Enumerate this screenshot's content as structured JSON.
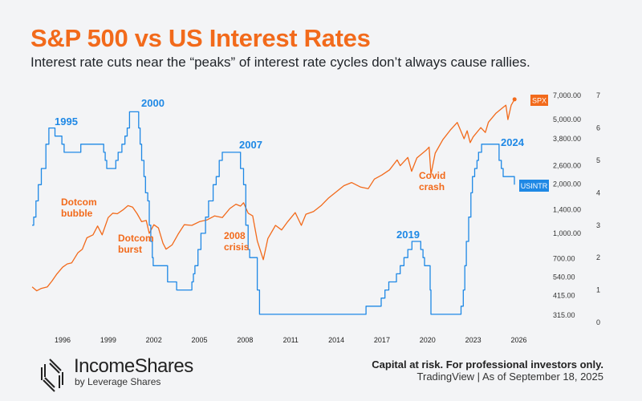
{
  "header": {
    "title": "S&P 500 vs US Interest Rates",
    "subtitle": "Interest rate cuts near the “peaks” of interest rate cycles don’t always cause rallies."
  },
  "footer": {
    "brand": "IncomeShares",
    "brand_sub": "by Leverage Shares",
    "disclaimer": "Capital at risk. For professional investors only.",
    "source": "TradingView | As of September 18, 2025"
  },
  "colors": {
    "spx": "#f26a1b",
    "rate": "#1e88e5",
    "title": "#f26a1b"
  },
  "chart_data": {
    "type": "line",
    "x_ticks": [
      "1996",
      "1999",
      "2002",
      "2005",
      "2008",
      "2011",
      "2014",
      "2017",
      "2020",
      "2023",
      "2026"
    ],
    "y_left_label_ticks_spx": [
      "7,000.00",
      "5,000.00",
      "3,800.00",
      "2,600.00",
      "2,000.00",
      "1,400.00",
      "1,000.00",
      "700.00",
      "540.00",
      "415.00",
      "315.00"
    ],
    "y_right_ticks_rate": [
      "7",
      "6",
      "5",
      "4",
      "3",
      "2",
      "1",
      "0"
    ],
    "spx_scale": "log",
    "xlim": [
      1994,
      2026.5
    ],
    "series": [
      {
        "name": "SPX",
        "axis": "spx",
        "points": [
          [
            1994,
            470
          ],
          [
            1994.3,
            445
          ],
          [
            1994.6,
            460
          ],
          [
            1995,
            470
          ],
          [
            1995.3,
            510
          ],
          [
            1995.6,
            560
          ],
          [
            1996,
            620
          ],
          [
            1996.3,
            650
          ],
          [
            1996.6,
            660
          ],
          [
            1997,
            760
          ],
          [
            1997.3,
            800
          ],
          [
            1997.6,
            940
          ],
          [
            1998,
            980
          ],
          [
            1998.3,
            1110
          ],
          [
            1998.6,
            980
          ],
          [
            1999,
            1250
          ],
          [
            1999.3,
            1330
          ],
          [
            1999.6,
            1320
          ],
          [
            2000,
            1400
          ],
          [
            2000.3,
            1480
          ],
          [
            2000.6,
            1450
          ],
          [
            2000.9,
            1320
          ],
          [
            2001.2,
            1180
          ],
          [
            2001.5,
            1200
          ],
          [
            2001.7,
            1000
          ],
          [
            2002,
            1130
          ],
          [
            2002.3,
            1080
          ],
          [
            2002.6,
            870
          ],
          [
            2002.8,
            800
          ],
          [
            2003.2,
            850
          ],
          [
            2003.6,
            990
          ],
          [
            2004,
            1130
          ],
          [
            2004.5,
            1120
          ],
          [
            2005,
            1180
          ],
          [
            2005.5,
            1210
          ],
          [
            2006,
            1280
          ],
          [
            2006.5,
            1250
          ],
          [
            2007,
            1420
          ],
          [
            2007.4,
            1510
          ],
          [
            2007.7,
            1470
          ],
          [
            2007.9,
            1540
          ],
          [
            2008.2,
            1330
          ],
          [
            2008.5,
            1280
          ],
          [
            2008.8,
            900
          ],
          [
            2009.2,
            690
          ],
          [
            2009.5,
            930
          ],
          [
            2010,
            1120
          ],
          [
            2010.4,
            1050
          ],
          [
            2010.8,
            1180
          ],
          [
            2011.3,
            1340
          ],
          [
            2011.7,
            1120
          ],
          [
            2012,
            1310
          ],
          [
            2012.5,
            1360
          ],
          [
            2013,
            1480
          ],
          [
            2013.5,
            1650
          ],
          [
            2014,
            1800
          ],
          [
            2014.5,
            1960
          ],
          [
            2015,
            2050
          ],
          [
            2015.6,
            1920
          ],
          [
            2016.1,
            1880
          ],
          [
            2016.5,
            2150
          ],
          [
            2017,
            2280
          ],
          [
            2017.5,
            2450
          ],
          [
            2018,
            2820
          ],
          [
            2018.2,
            2600
          ],
          [
            2018.7,
            2920
          ],
          [
            2018.95,
            2400
          ],
          [
            2019.3,
            2900
          ],
          [
            2019.9,
            3230
          ],
          [
            2020.1,
            3380
          ],
          [
            2020.22,
            2300
          ],
          [
            2020.5,
            3100
          ],
          [
            2021,
            3750
          ],
          [
            2021.5,
            4300
          ],
          [
            2021.95,
            4780
          ],
          [
            2022.4,
            3800
          ],
          [
            2022.6,
            4250
          ],
          [
            2022.8,
            3600
          ],
          [
            2023,
            3900
          ],
          [
            2023.5,
            4450
          ],
          [
            2023.8,
            4150
          ],
          [
            2024,
            4800
          ],
          [
            2024.5,
            5450
          ],
          [
            2024.95,
            5900
          ],
          [
            2025.15,
            6100
          ],
          [
            2025.28,
            4980
          ],
          [
            2025.5,
            6100
          ],
          [
            2025.72,
            6630
          ]
        ]
      },
      {
        "name": "USINTR",
        "axis": "rate",
        "step": true,
        "points": [
          [
            1994,
            3.0
          ],
          [
            1994.1,
            3.25
          ],
          [
            1994.25,
            3.75
          ],
          [
            1994.4,
            4.25
          ],
          [
            1994.6,
            4.75
          ],
          [
            1994.9,
            5.5
          ],
          [
            1995.1,
            6.0
          ],
          [
            1995.5,
            5.75
          ],
          [
            1995.95,
            5.5
          ],
          [
            1996.1,
            5.25
          ],
          [
            1997.2,
            5.5
          ],
          [
            1998.7,
            5.25
          ],
          [
            1998.8,
            5.0
          ],
          [
            1998.9,
            4.75
          ],
          [
            1999.5,
            5.0
          ],
          [
            1999.65,
            5.25
          ],
          [
            1999.9,
            5.5
          ],
          [
            2000.1,
            5.75
          ],
          [
            2000.25,
            6.0
          ],
          [
            2000.4,
            6.5
          ],
          [
            2001.0,
            6.0
          ],
          [
            2001.1,
            5.5
          ],
          [
            2001.2,
            5.0
          ],
          [
            2001.35,
            4.5
          ],
          [
            2001.45,
            4.0
          ],
          [
            2001.6,
            3.75
          ],
          [
            2001.7,
            3.0
          ],
          [
            2001.8,
            2.5
          ],
          [
            2001.9,
            2.0
          ],
          [
            2001.96,
            1.75
          ],
          [
            2002.9,
            1.25
          ],
          [
            2003.5,
            1.0
          ],
          [
            2004.5,
            1.25
          ],
          [
            2004.6,
            1.5
          ],
          [
            2004.7,
            1.75
          ],
          [
            2004.9,
            2.25
          ],
          [
            2005.1,
            2.75
          ],
          [
            2005.4,
            3.25
          ],
          [
            2005.6,
            3.75
          ],
          [
            2005.9,
            4.25
          ],
          [
            2006.1,
            4.5
          ],
          [
            2006.3,
            5.0
          ],
          [
            2006.5,
            5.25
          ],
          [
            2007.7,
            4.75
          ],
          [
            2007.9,
            4.25
          ],
          [
            2008.05,
            3.0
          ],
          [
            2008.2,
            2.25
          ],
          [
            2008.3,
            2.0
          ],
          [
            2008.8,
            1.0
          ],
          [
            2008.95,
            0.25
          ],
          [
            2015.95,
            0.5
          ],
          [
            2016.95,
            0.75
          ],
          [
            2017.2,
            1.0
          ],
          [
            2017.45,
            1.25
          ],
          [
            2017.95,
            1.5
          ],
          [
            2018.2,
            1.75
          ],
          [
            2018.45,
            2.0
          ],
          [
            2018.7,
            2.25
          ],
          [
            2018.97,
            2.5
          ],
          [
            2019.55,
            2.25
          ],
          [
            2019.7,
            2.0
          ],
          [
            2019.8,
            1.75
          ],
          [
            2020.17,
            1.0
          ],
          [
            2020.22,
            0.25
          ],
          [
            2022.2,
            0.5
          ],
          [
            2022.35,
            1.0
          ],
          [
            2022.45,
            1.75
          ],
          [
            2022.55,
            2.5
          ],
          [
            2022.7,
            3.25
          ],
          [
            2022.85,
            4.0
          ],
          [
            2022.95,
            4.5
          ],
          [
            2023.1,
            4.75
          ],
          [
            2023.25,
            5.0
          ],
          [
            2023.35,
            5.25
          ],
          [
            2023.55,
            5.5
          ],
          [
            2024.7,
            5.0
          ],
          [
            2024.85,
            4.75
          ],
          [
            2024.97,
            4.5
          ],
          [
            2025.71,
            4.25
          ]
        ]
      }
    ],
    "annotations": {
      "rate_peaks": [
        "1995",
        "2000",
        "2007",
        "2019",
        "2024"
      ],
      "events": [
        "Dotcom bubble",
        "Dotcom burst",
        "2008 crisis",
        "Covid crash"
      ]
    },
    "series_tags": {
      "spx": "SPX",
      "rate": "USINTR"
    }
  }
}
